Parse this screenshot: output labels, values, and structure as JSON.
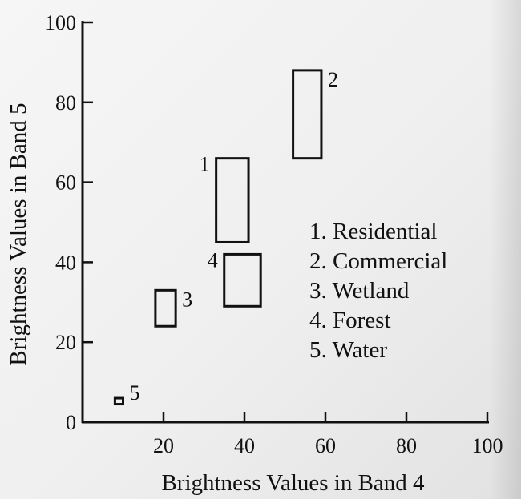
{
  "chart_data": {
    "type": "scatter",
    "title": "",
    "xlabel": "Brightness Values in Band 4",
    "ylabel": "Brightness Values in Band 5",
    "xlim": [
      0,
      100
    ],
    "ylim": [
      0,
      100
    ],
    "xticks": [
      "20",
      "40",
      "60",
      "80",
      "100"
    ],
    "yticks": [
      "0",
      "20",
      "40",
      "60",
      "80",
      "100"
    ],
    "classes": [
      {
        "id": "1",
        "x": [
          33,
          41
        ],
        "y": [
          45,
          66
        ]
      },
      {
        "id": "2",
        "x": [
          52,
          59
        ],
        "y": [
          66,
          88
        ]
      },
      {
        "id": "3",
        "x": [
          18,
          23
        ],
        "y": [
          24,
          33
        ]
      },
      {
        "id": "4",
        "x": [
          35,
          44
        ],
        "y": [
          29,
          42
        ]
      },
      {
        "id": "5",
        "x": [
          8,
          10
        ],
        "y": [
          4.5,
          6
        ]
      }
    ],
    "legend": [
      "1. Residential",
      "2. Commercial",
      "3. Wetland",
      "4. Forest",
      "5. Water"
    ],
    "grid": false,
    "legend_placement": "right-center"
  }
}
